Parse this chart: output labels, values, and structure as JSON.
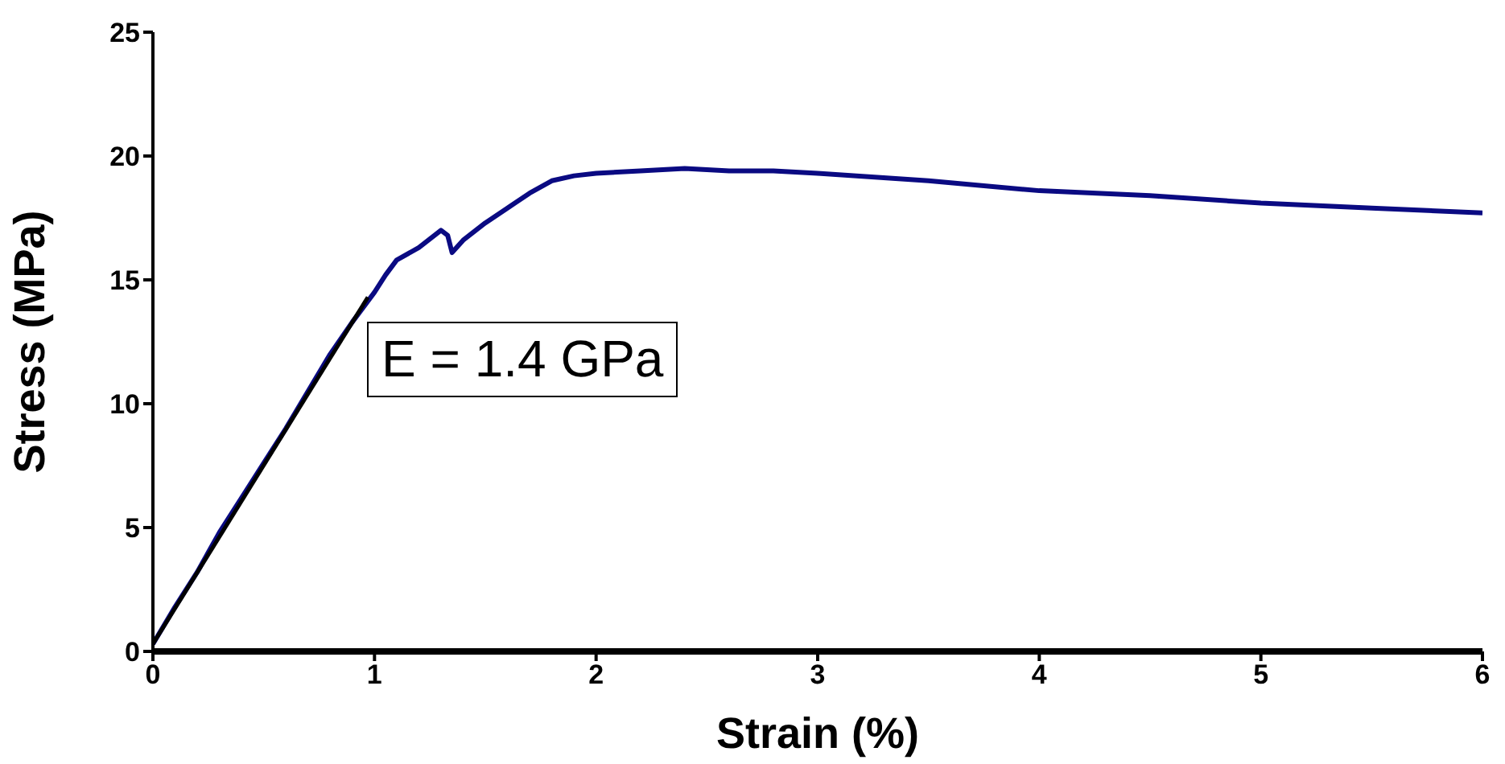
{
  "chart_data": {
    "type": "line",
    "xlabel": "Strain (%)",
    "ylabel": "Stress (MPa)",
    "xlim": [
      0,
      6
    ],
    "xticks": [
      0,
      1,
      2,
      3,
      4,
      5,
      6
    ],
    "ylim": [
      0,
      25
    ],
    "yticks": [
      0,
      5,
      10,
      15,
      20,
      25
    ],
    "marker": "none",
    "line_style": "solid",
    "annotations": [
      "E = 1.4 GPa"
    ],
    "series": [
      {
        "color": "#0a0a82",
        "x": [
          0,
          0.1,
          0.2,
          0.3,
          0.4,
          0.5,
          0.6,
          0.7,
          0.8,
          0.9,
          1.0,
          1.05,
          1.1,
          1.2,
          1.3,
          1.33,
          1.35,
          1.4,
          1.5,
          1.6,
          1.7,
          1.8,
          1.9,
          2.0,
          2.2,
          2.4,
          2.6,
          2.8,
          3.0,
          3.5,
          4.0,
          4.5,
          5.0,
          5.5,
          6.0
        ],
        "values": [
          0.3,
          1.8,
          3.2,
          4.8,
          6.2,
          7.6,
          9,
          10.5,
          12,
          13.3,
          14.5,
          15.2,
          15.8,
          16.3,
          17,
          16.8,
          16.1,
          16.6,
          17.3,
          17.9,
          18.5,
          19,
          19.2,
          19.3,
          19.4,
          19.5,
          19.4,
          19.4,
          19.3,
          19,
          18.6,
          18.4,
          18.1,
          17.9,
          17.7
        ]
      },
      {
        "type": "line",
        "color": "#000000",
        "x": [
          0,
          0.97
        ],
        "values": [
          0.3,
          14.3
        ]
      }
    ]
  }
}
